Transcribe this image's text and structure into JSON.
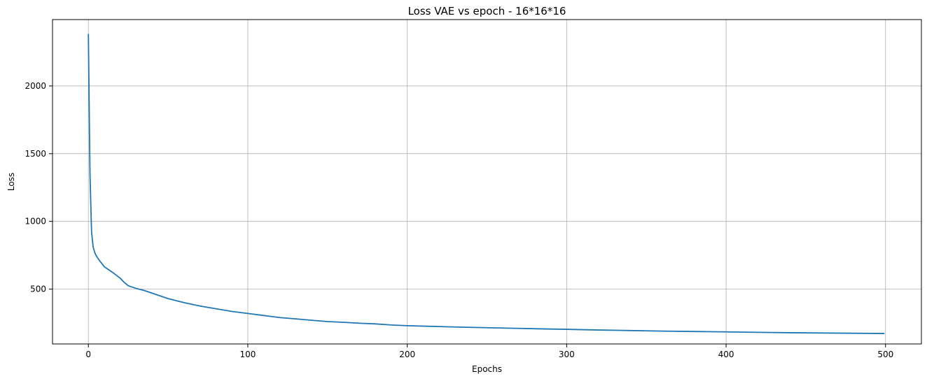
{
  "chart_data": {
    "type": "line",
    "title": "Loss VAE vs epoch - 16*16*16",
    "xlabel": "Epochs",
    "ylabel": "Loss",
    "xlim": [
      -22.5,
      522.5
    ],
    "ylim": [
      95,
      2490
    ],
    "xticks": [
      0,
      100,
      200,
      300,
      400,
      500
    ],
    "yticks": [
      500,
      1000,
      1500,
      2000
    ],
    "grid": true,
    "color": "#1f77b4",
    "series": [
      {
        "x": [
          0,
          1,
          2,
          3,
          4,
          5,
          7,
          10,
          15,
          20,
          22,
          25,
          30,
          35,
          40,
          45,
          50,
          55,
          60,
          70,
          80,
          90,
          100,
          110,
          120,
          130,
          140,
          150,
          160,
          170,
          180,
          190,
          200,
          215,
          230,
          250,
          270,
          290,
          300,
          320,
          340,
          360,
          380,
          400,
          420,
          440,
          460,
          480,
          499
        ],
        "y": [
          2380,
          1350,
          920,
          810,
          770,
          745,
          710,
          665,
          625,
          580,
          555,
          525,
          505,
          490,
          470,
          450,
          430,
          415,
          400,
          375,
          355,
          335,
          320,
          305,
          290,
          280,
          270,
          260,
          255,
          248,
          243,
          235,
          230,
          225,
          220,
          215,
          210,
          205,
          203,
          198,
          194,
          190,
          187,
          184,
          181,
          178,
          176,
          174,
          172
        ]
      }
    ]
  }
}
